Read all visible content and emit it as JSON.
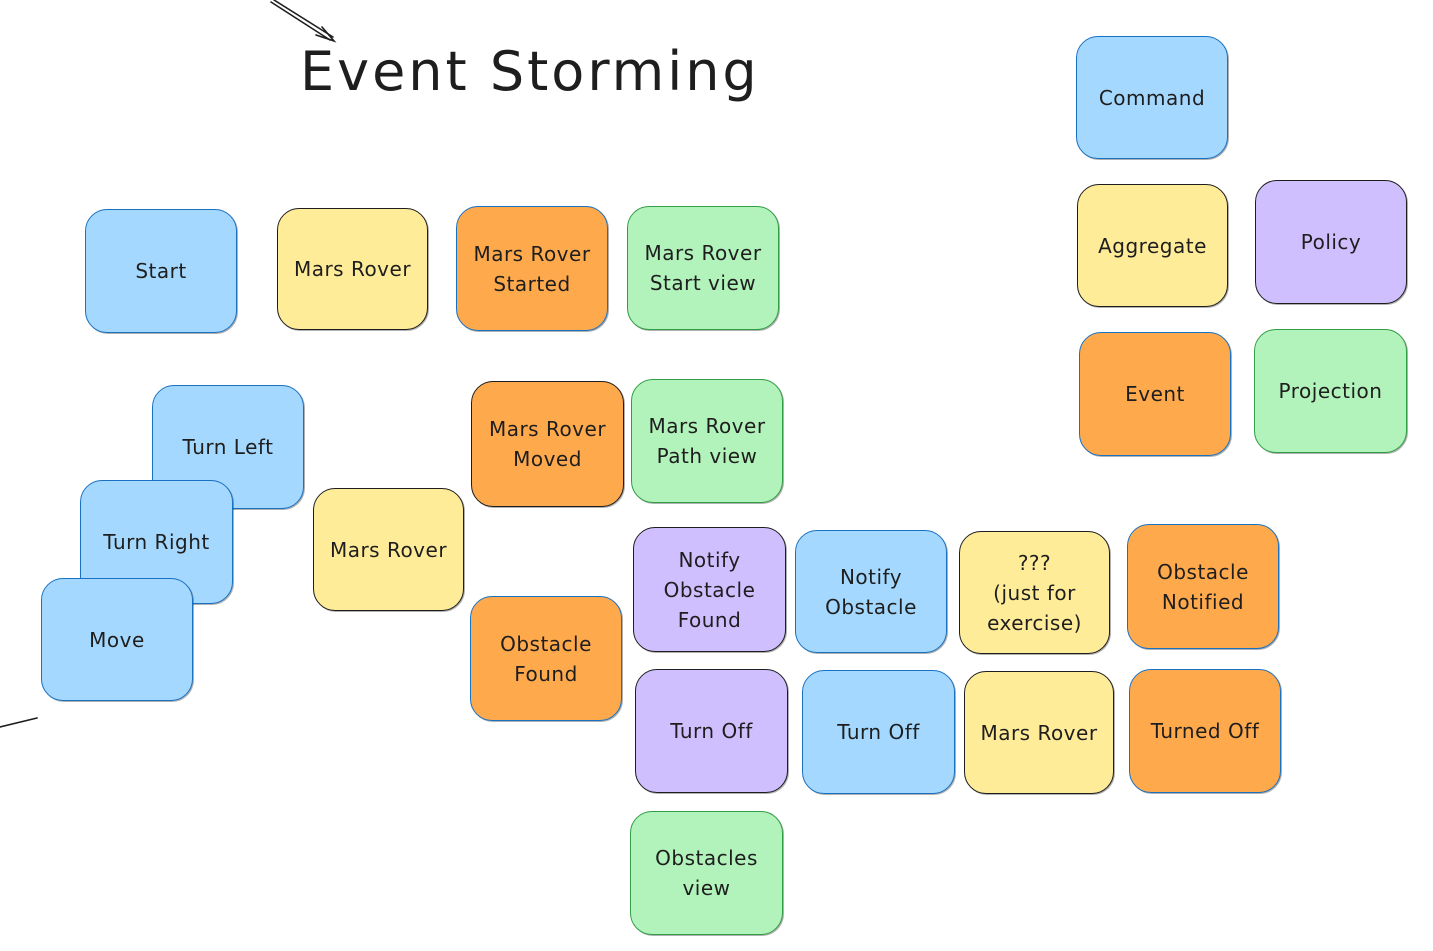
{
  "diagram": {
    "title": "Event Storming",
    "colors": {
      "command": "#a5d8ff",
      "aggregate": "#ffec99",
      "event": "#ffa94d",
      "projection": "#b2f2bb",
      "policy": "#d0bfff",
      "ink": "#1e1e1e"
    },
    "legend": {
      "command": "Command",
      "aggregate": "Aggregate",
      "policy": "Policy",
      "event": "Event",
      "projection": "Projection"
    },
    "start_flow": {
      "command": "Start",
      "aggregate": "Mars Rover",
      "event": "Mars Rover\nStarted",
      "projection": "Mars Rover\nStart view"
    },
    "move_flow": {
      "turn_left": "Turn Left",
      "turn_right": "Turn Right",
      "move": "Move",
      "aggregate": "Mars Rover",
      "event": "Mars Rover\nMoved",
      "projection": "Mars Rover\nPath view"
    },
    "obstacle_flow": {
      "event": "Obstacle\nFound",
      "policy": "Notify\nObstacle\nFound",
      "command": "Notify\nObstacle",
      "aggregate": "???\n(just for\nexercise)",
      "notified_event": "Obstacle\nNotified"
    },
    "turn_off_flow": {
      "policy": "Turn Off",
      "command": "Turn Off",
      "aggregate": "Mars Rover",
      "event": "Turned Off"
    },
    "obstacles_view": "Obstacles\nview"
  }
}
